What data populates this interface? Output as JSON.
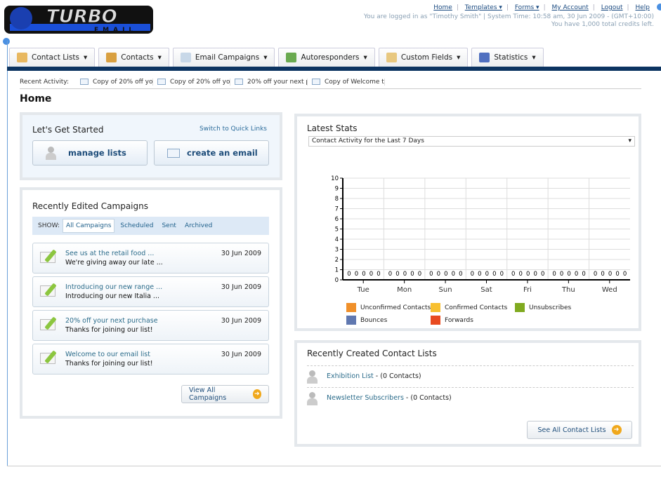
{
  "logo": {
    "text": "TURBO",
    "sub": "EMAIL"
  },
  "header": {
    "links": [
      "Home",
      "Templates ▾",
      "Forms ▾",
      "My Account",
      "Logout",
      "Help"
    ],
    "login_info": "You are logged in as \"Timothy Smith\" | System Time: 10:58 am, 30 Jun 2009 - (GMT+10:00)",
    "credits": "You have 1,000 total credits left."
  },
  "nav": [
    {
      "label": "Contact Lists",
      "icon": "contact-lists-icon",
      "color": "#e8b860"
    },
    {
      "label": "Contacts",
      "icon": "contacts-icon",
      "color": "#d9a040"
    },
    {
      "label": "Email Campaigns",
      "icon": "email-icon",
      "color": "#c8d8e8"
    },
    {
      "label": "Autoresponders",
      "icon": "autoresponder-icon",
      "color": "#6aaa50"
    },
    {
      "label": "Custom Fields",
      "icon": "custom-fields-icon",
      "color": "#e8c880"
    },
    {
      "label": "Statistics",
      "icon": "statistics-icon",
      "color": "#5070c0"
    }
  ],
  "recent": {
    "label": "Recent Activity:",
    "items": [
      "Copy of 20% off yo",
      "Copy of 20% off yo",
      "20% off your next p",
      "Copy of Welcome to"
    ]
  },
  "page_title": "Home",
  "get_started": {
    "title": "Let's Get Started",
    "switch": "Switch to Quick Links",
    "manage": "manage lists",
    "create": "create an email"
  },
  "campaigns": {
    "title": "Recently Edited Campaigns",
    "show": "SHOW:",
    "filters": [
      "All Campaigns",
      "Scheduled",
      "Sent",
      "Archived"
    ],
    "items": [
      {
        "title": "See us at the retail food ...",
        "sub": "We're giving away our late ...",
        "date": "30 Jun 2009"
      },
      {
        "title": "Introducing our new range ...",
        "sub": "Introducing our new Italia ...",
        "date": "30 Jun 2009"
      },
      {
        "title": "20% off your next purchase",
        "sub": "Thanks for joining our list!",
        "date": "30 Jun 2009"
      },
      {
        "title": "Welcome to our email list",
        "sub": "Thanks for joining our list!",
        "date": "30 Jun 2009"
      }
    ],
    "view_all": "View All Campaigns"
  },
  "stats": {
    "title": "Latest Stats",
    "select": "Contact Activity for the Last 7 Days"
  },
  "chart_data": {
    "type": "bar",
    "categories": [
      "Tue",
      "Mon",
      "Sun",
      "Sat",
      "Fri",
      "Thu",
      "Wed"
    ],
    "ylim": [
      0,
      10
    ],
    "yticks": [
      0,
      1,
      2,
      3,
      4,
      5,
      6,
      7,
      8,
      9,
      10
    ],
    "grid": true,
    "legend": "bottom",
    "series": [
      {
        "name": "Unconfirmed Contacts",
        "color": "#f0902a",
        "values": [
          0,
          0,
          0,
          0,
          0,
          0,
          0
        ]
      },
      {
        "name": "Confirmed Contacts",
        "color": "#f8c030",
        "values": [
          0,
          0,
          0,
          0,
          0,
          0,
          0
        ]
      },
      {
        "name": "Unsubscribes",
        "color": "#80aa20",
        "values": [
          0,
          0,
          0,
          0,
          0,
          0,
          0
        ]
      },
      {
        "name": "Bounces",
        "color": "#6078b0",
        "values": [
          0,
          0,
          0,
          0,
          0,
          0,
          0
        ]
      },
      {
        "name": "Forwards",
        "color": "#e84a20",
        "values": [
          0,
          0,
          0,
          0,
          0,
          0,
          0
        ]
      }
    ]
  },
  "contact_lists": {
    "title": "Recently Created Contact Lists",
    "items": [
      {
        "name": "Exhibition List",
        "count": " - (0 Contacts)"
      },
      {
        "name": "Newsletter Subscribers",
        "count": " - (0 Contacts)"
      }
    ],
    "see_all": "See All Contact Lists"
  }
}
